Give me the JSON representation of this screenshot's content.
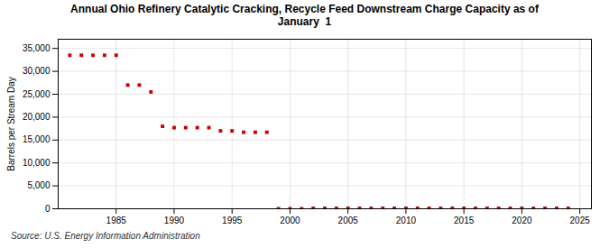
{
  "chart_data": {
    "type": "scatter",
    "title": "Annual Ohio Refinery Catalytic Cracking, Recycle Feed Downstream Charge Capacity as of\nJanuary  1",
    "ylabel": "Barrels per Stream Day",
    "source": "Source: U.S. Energy Information Administration",
    "x": [
      1981,
      1982,
      1983,
      1984,
      1985,
      1986,
      1987,
      1988,
      1989,
      1990,
      1991,
      1992,
      1993,
      1994,
      1995,
      1996,
      1997,
      1998,
      1999,
      2000,
      2001,
      2002,
      2003,
      2004,
      2005,
      2006,
      2007,
      2008,
      2009,
      2010,
      2011,
      2012,
      2013,
      2014,
      2015,
      2016,
      2017,
      2018,
      2019,
      2020,
      2021,
      2022,
      2023,
      2024
    ],
    "values": [
      33500,
      33500,
      33500,
      33500,
      33500,
      27000,
      27000,
      25500,
      18000,
      17700,
      17700,
      17700,
      17700,
      17000,
      17000,
      16700,
      16700,
      16700,
      0,
      0,
      0,
      100,
      100,
      100,
      100,
      100,
      100,
      100,
      100,
      100,
      100,
      100,
      100,
      100,
      100,
      100,
      100,
      100,
      100,
      100,
      100,
      100,
      100,
      100
    ],
    "color": "#cc0000",
    "marker": "square",
    "grid": true,
    "xlim": [
      1980,
      2026
    ],
    "xticks": [
      1985,
      1990,
      1995,
      2000,
      2005,
      2010,
      2015,
      2020,
      2025
    ],
    "ylim": [
      0,
      37000
    ],
    "yticks": [
      0,
      {
        "value": 5000,
        "label": "5,000"
      },
      {
        "value": 10000,
        "label": "10,000"
      },
      {
        "value": 15000,
        "label": "15,000"
      },
      {
        "value": 20000,
        "label": "20,000"
      },
      {
        "value": 25000,
        "label": "25,000"
      },
      {
        "value": 30000,
        "label": "30,000"
      },
      {
        "value": 35000,
        "label": "35,000"
      }
    ]
  }
}
